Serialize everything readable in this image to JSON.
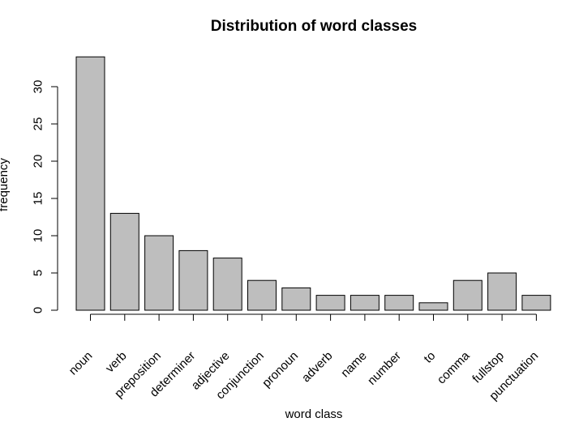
{
  "chart_data": {
    "type": "bar",
    "title": "Distribution of word classes",
    "xlabel": "word class",
    "ylabel": "frequency",
    "categories": [
      "noun",
      "verb",
      "preposition",
      "determiner",
      "adjective",
      "conjunction",
      "pronoun",
      "adverb",
      "name",
      "number",
      "to",
      "comma",
      "fullstop",
      "punctuation"
    ],
    "values": [
      34,
      13,
      10,
      8,
      7,
      4,
      3,
      2,
      2,
      2,
      1,
      4,
      5,
      2
    ],
    "ylim": [
      0,
      34
    ],
    "yticks": [
      0,
      5,
      10,
      15,
      20,
      25,
      30
    ],
    "grid": false,
    "legend": "none",
    "colors": {
      "bar_fill": "#bebebe",
      "bar_stroke": "#000000",
      "axis": "#000000",
      "background": "#ffffff"
    }
  }
}
